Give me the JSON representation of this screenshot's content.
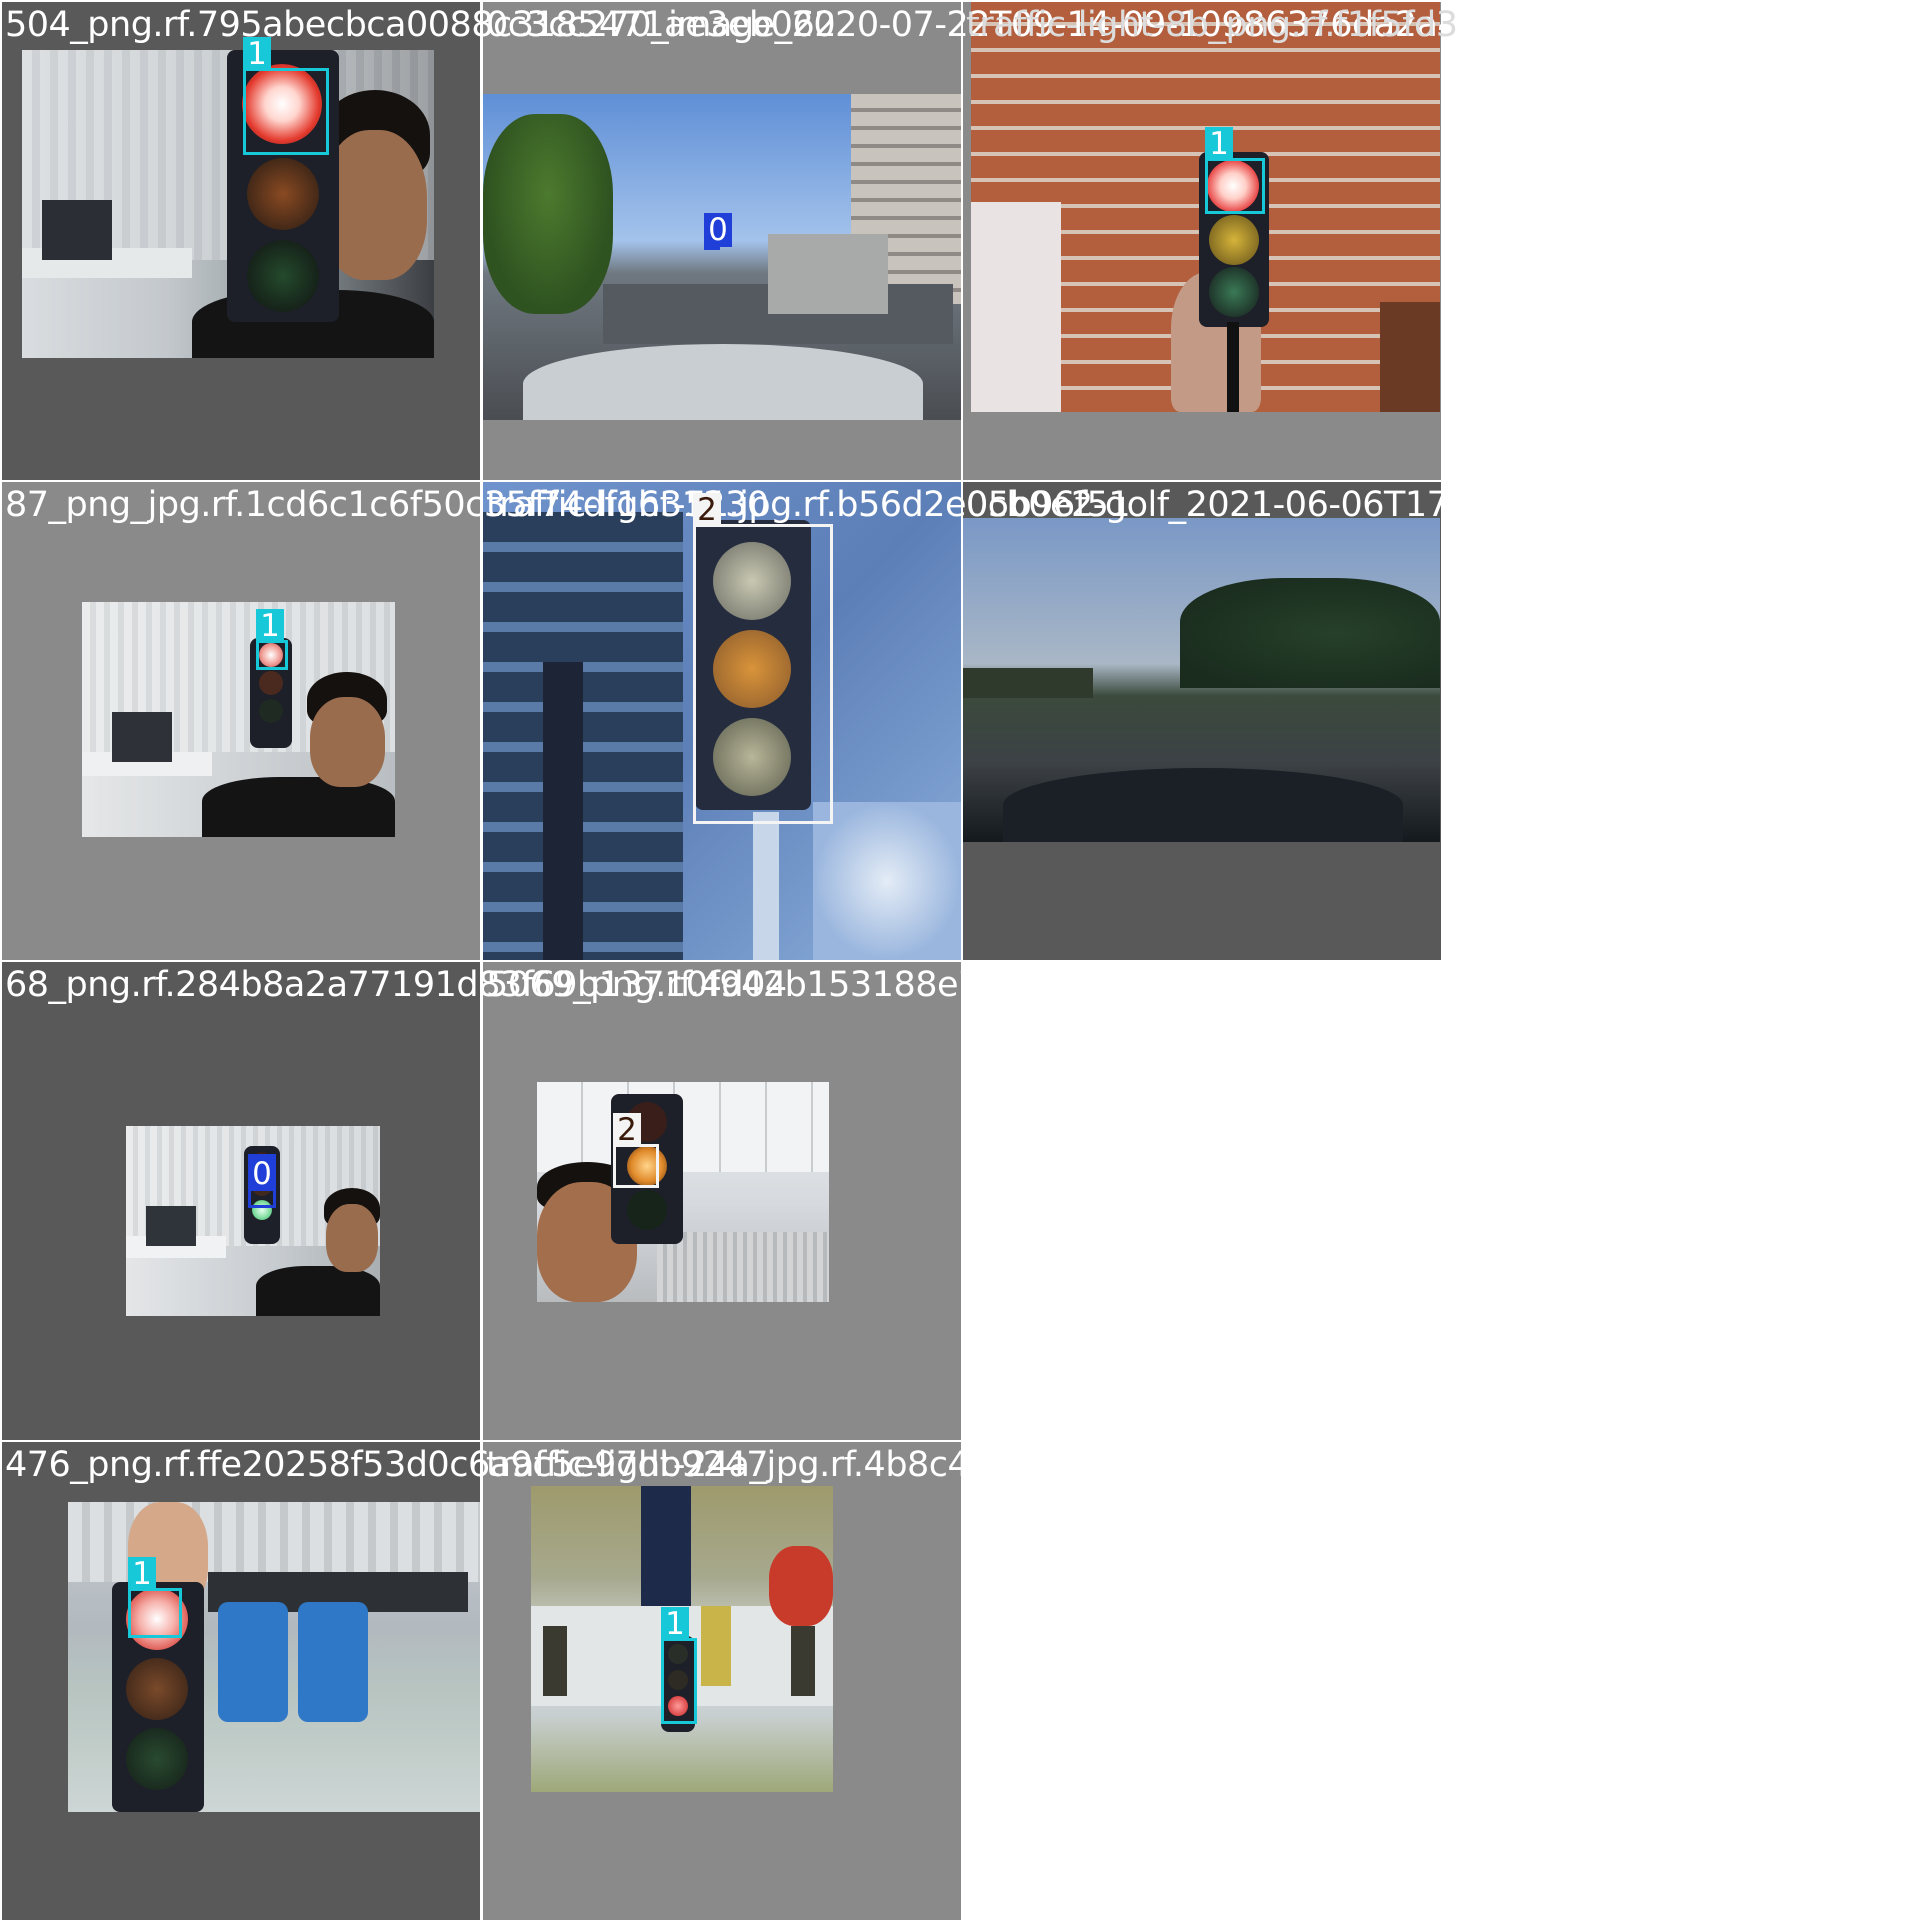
{
  "tiles": [
    {
      "filename": "504_png.rf.795abecbca0088c3185471ae3eb062",
      "label": "1"
    },
    {
      "filename": "0c3cc270_image_2020-07-22T09-14-09-10986376da2a4bce4bd848f6181a892",
      "label": "0"
    },
    {
      "filename": "traffic-light-8b_png.rf.f1f5fd3",
      "label": "1"
    },
    {
      "filename": "87_png_jpg.rf.1cd6c1c6f50c35f74df1631230",
      "label": "1"
    },
    {
      "filename": "traffic-light-51.jpg.rf.b56d2e05b96f51",
      "label": "2"
    },
    {
      "filename": "0cb0e2-golf_2021-06-06T17-53-52-777133Z_",
      "label": ""
    },
    {
      "filename": "68_png.rf.284b8a2a77191d83f69b13710f942b153188e72e3a7bf088494a67",
      "label": "0"
    },
    {
      "filename": "5069_png.rf.4d04",
      "label": "2"
    },
    {
      "filename": "476_png.rf.ffe20258f53d0c6a9c5e97db9247",
      "label": "1"
    },
    {
      "filename": "traffic-light-24a_jpg.rf.4b8c473566ba3b",
      "label": "1"
    }
  ],
  "colors": {
    "class_0": "#1f3fd8",
    "class_1": "#17c8d8",
    "class_2": "#f4f4f4"
  }
}
